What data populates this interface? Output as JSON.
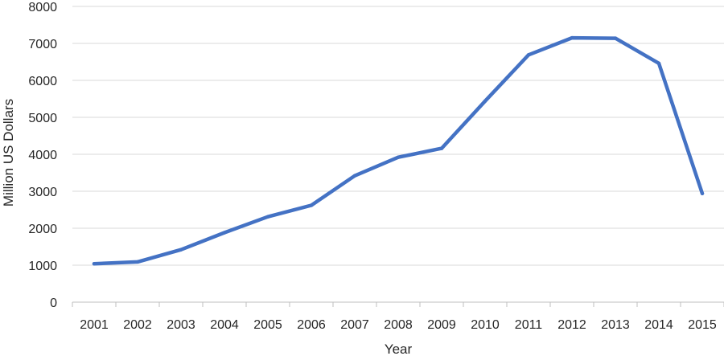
{
  "chart_data": {
    "type": "line",
    "title": "",
    "xlabel": "Year",
    "ylabel": "Million US Dollars",
    "x": [
      "2001",
      "2002",
      "2003",
      "2004",
      "2005",
      "2006",
      "2007",
      "2008",
      "2009",
      "2010",
      "2011",
      "2012",
      "2013",
      "2014",
      "2015"
    ],
    "series": [
      {
        "values": [
          1040,
          1090,
          1420,
          1880,
          2310,
          2620,
          3420,
          3920,
          4160,
          5440,
          6690,
          7150,
          7140,
          6460,
          2940
        ],
        "color": "#4472c4"
      }
    ],
    "ylim": [
      0,
      8000
    ],
    "yticks": [
      "0",
      "1000",
      "2000",
      "3000",
      "4000",
      "5000",
      "6000",
      "7000",
      "8000"
    ],
    "grid": "horizontal",
    "legend": "none"
  }
}
